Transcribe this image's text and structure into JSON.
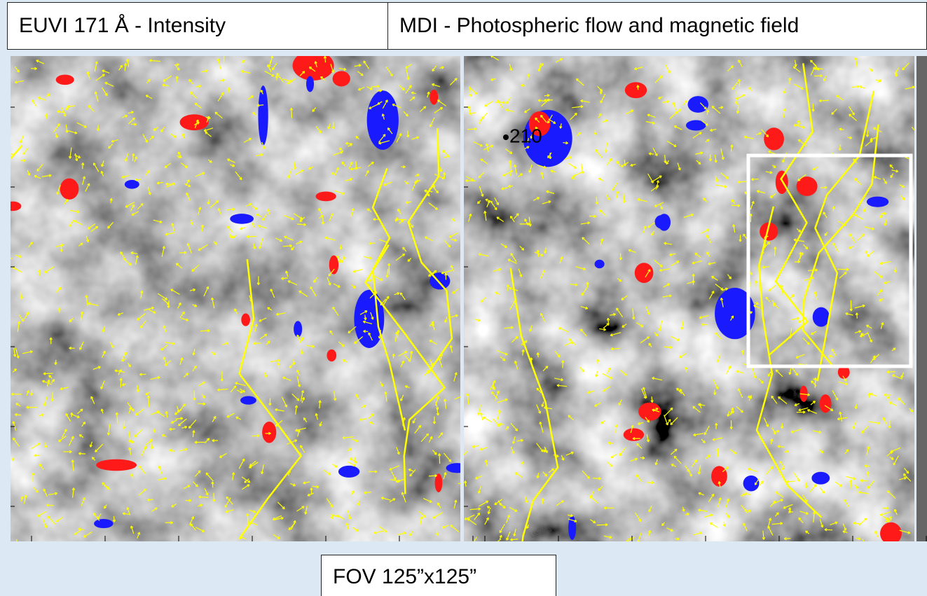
{
  "header": {
    "left_title": "EUVI 171 Å -  Intensity",
    "right_title": "MDI  - Photospheric flow and magnetic field"
  },
  "annotation": "210",
  "footer": "FOV 125”x125”"
}
